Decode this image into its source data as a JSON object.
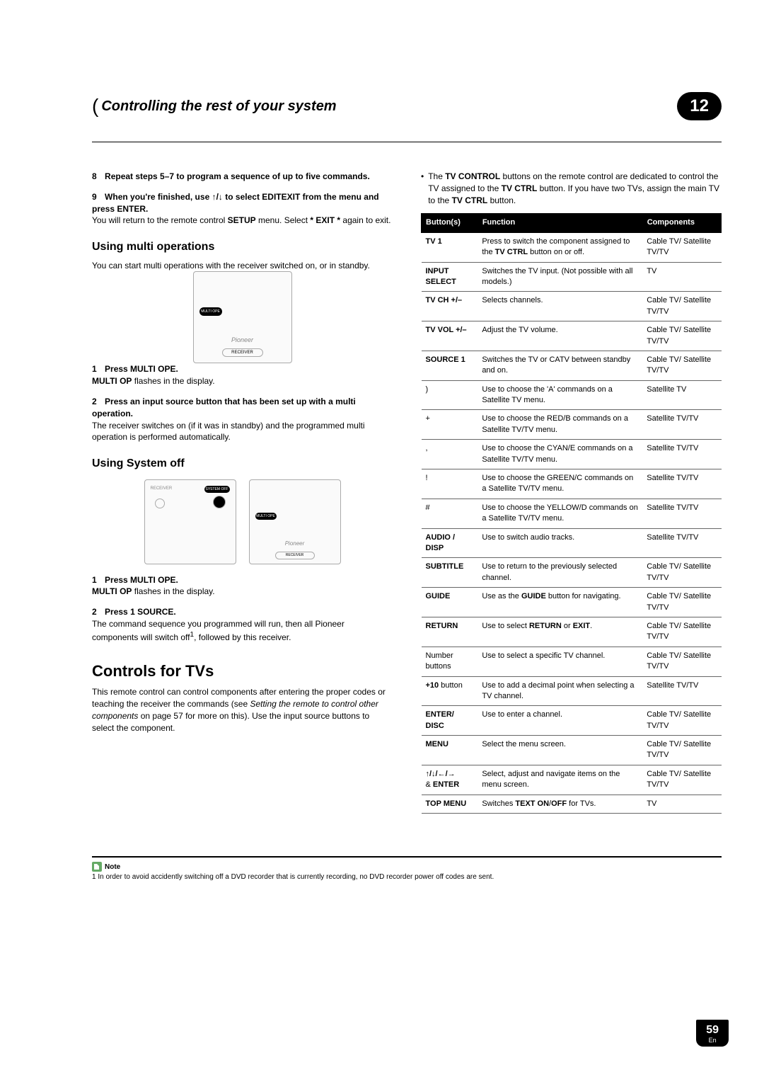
{
  "chapter": {
    "title": "Controlling the rest of your system",
    "number": "12"
  },
  "leftCol": {
    "step8": {
      "num": "8",
      "title": "Repeat steps 5–7 to program a sequence of up to five commands."
    },
    "step9": {
      "num": "9",
      "title_a": "When you're finished, use ",
      "title_b": " to select EDITEXIT from the menu and press ENTER.",
      "body_a": "You will return to the remote control ",
      "body_b": "SETUP",
      "body_c": " menu. Select ",
      "body_d": "* EXIT *",
      "body_e": " again to exit."
    },
    "multiOps": {
      "heading": "Using multi operations",
      "intro": "You can start multi operations with the receiver switched on, or in standby."
    },
    "mo_step1": {
      "num": "1",
      "title": "Press MULTI OPE.",
      "body_a": "MULTI OP",
      "body_b": " flashes in the display."
    },
    "mo_step2": {
      "num": "2",
      "title": "Press an input source button that has been set up with a multi operation.",
      "body": "The receiver switches on (if it was in standby) and the programmed multi operation is performed automatically."
    },
    "sysOff": {
      "heading": "Using System off"
    },
    "so_step1": {
      "num": "1",
      "title": "Press MULTI OPE.",
      "body_a": "MULTI OP",
      "body_b": " flashes in the display."
    },
    "so_step2": {
      "num": "2",
      "title_a": "Press ",
      "title_b": "1",
      "title_c": " SOURCE.",
      "body_a": "The command sequence you programmed will run, then all Pioneer components will switch off",
      "body_b": ", followed by this receiver."
    },
    "controlsTVs": {
      "heading": "Controls for TVs",
      "body_a": "This remote control can control components after entering the proper codes or teaching the receiver the commands (see ",
      "body_b": "Setting the remote to control other components",
      "body_c": " on page 57 for more on this). Use the input source buttons to select the component."
    }
  },
  "rightCol": {
    "bullet_a": "The ",
    "bullet_b": "TV CONTROL",
    "bullet_c": " buttons on the remote control are dedicated to control the TV assigned to the ",
    "bullet_d": "TV CTRL",
    "bullet_e": " button. If you have two TVs, assign the main TV to the ",
    "bullet_f": "TV CTRL",
    "bullet_g": " button.",
    "headers": {
      "c1": "Button(s)",
      "c2": "Function",
      "c3": "Components"
    },
    "rows": [
      {
        "b": "TV 1",
        "bbold": true,
        "f_a": "Press to switch the component assigned to the ",
        "f_b": "TV CTRL",
        "f_c": " button on or off.",
        "c": "Cable TV/ Satellite TV/TV"
      },
      {
        "b": "INPUT SELECT",
        "bbold": true,
        "f": "Switches the TV input. (Not possible with all models.)",
        "c": "TV"
      },
      {
        "b": "TV CH +/–",
        "bbold": true,
        "f": "Selects channels.",
        "c": "Cable TV/ Satellite TV/TV"
      },
      {
        "b": "TV VOL +/–",
        "bbold": true,
        "f": "Adjust the TV volume.",
        "c": "Cable TV/ Satellite TV/TV"
      },
      {
        "b": "SOURCE 1",
        "bbold": true,
        "f": "Switches the TV or CATV between standby and on.",
        "c": "Cable TV/ Satellite TV/TV"
      },
      {
        "b": ")",
        "f": "Use to choose the 'A' commands on a Satellite TV menu.",
        "c": "Satellite TV"
      },
      {
        "b": "+",
        "f": "Use to choose the RED/B commands on a Satellite TV/TV menu.",
        "c": "Satellite TV/TV"
      },
      {
        "b": ",",
        "f": "Use to choose the CYAN/E commands on a Satellite TV/TV menu.",
        "c": "Satellite TV/TV"
      },
      {
        "b": "!",
        "f": "Use to choose the GREEN/C commands on a Satellite TV/TV menu.",
        "c": "Satellite TV/TV"
      },
      {
        "b": "#",
        "f": "Use to choose the YELLOW/D commands on a Satellite TV/TV menu.",
        "c": "Satellite TV/TV"
      },
      {
        "b": "AUDIO / DISP",
        "bbold": true,
        "f": "Use to switch audio tracks.",
        "c": "Satellite TV/TV"
      },
      {
        "b": "SUBTITLE",
        "bbold": true,
        "f": "Use to return to the previously selected channel.",
        "c": "Cable TV/ Satellite TV/TV"
      },
      {
        "b": "GUIDE",
        "bbold": true,
        "f_a": "Use as the ",
        "f_b": "GUIDE",
        "f_c": " button for navigating.",
        "c": "Cable TV/ Satellite TV/TV"
      },
      {
        "b": "RETURN",
        "bbold": true,
        "f_a": "Use to select ",
        "f_b": "RETURN",
        "f_c": " or ",
        "f_d": "EXIT",
        "f_e": ".",
        "c": "Cable TV/ Satellite TV/TV"
      },
      {
        "b": "Number buttons",
        "f": "Use to select a specific TV channel.",
        "c": "Cable TV/ Satellite TV/TV"
      },
      {
        "b_a": "+10",
        "b_b": " button",
        "f": "Use to add a decimal point when selecting a TV channel.",
        "c": "Satellite TV/TV"
      },
      {
        "b": "ENTER/ DISC",
        "bbold": true,
        "f": "Use to enter a channel.",
        "c": "Cable TV/ Satellite TV/TV"
      },
      {
        "b": "MENU",
        "bbold": true,
        "f": "Select the menu screen.",
        "c": "Cable TV/ Satellite TV/TV"
      },
      {
        "b_arrows": true,
        "b_b": " & ENTER",
        "f": "Select, adjust and navigate items on the menu screen.",
        "c": "Cable TV/ Satellite TV/TV"
      },
      {
        "b": "TOP MENU",
        "bbold": true,
        "f_a": "Switches ",
        "f_b": "TEXT ON",
        "f_c": "/",
        "f_d": "OFF",
        "f_e": " for TVs.",
        "c": "TV"
      }
    ]
  },
  "footnote": {
    "noteLabel": "Note",
    "text": "1 In order to avoid accidently switching off a DVD recorder that is currently recording, no DVD recorder power off codes are sent."
  },
  "page": {
    "num": "59",
    "lang": "En"
  },
  "remotes": {
    "pioneer": "Pioneer",
    "receiver": "RECEIVER",
    "multiOpe": "MULTI OPE",
    "systemOff": "SYSTEM OFF",
    "receiver2": "RECEIVER"
  }
}
